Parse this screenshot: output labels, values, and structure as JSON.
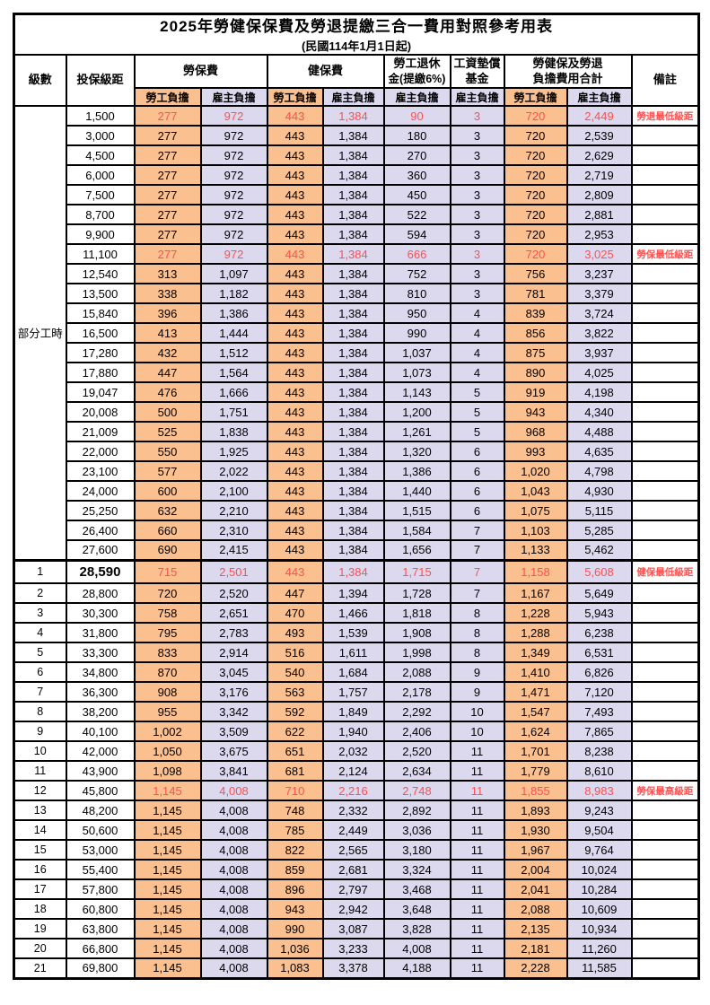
{
  "title": "2025年勞健保保費及勞退提繳三合一費用對照參考用表",
  "subtitle": "(民國114年1月1日起)",
  "colors": {
    "employee_burden_bg": "#FAC08F",
    "employer_burden_bg": "#DCD8EE",
    "highlight_text": "#FF4F4F",
    "border": "#000000"
  },
  "header": {
    "level": "級數",
    "bracket": "投保級距",
    "labor_group": "勞保費",
    "health_group": "健保費",
    "pension_line1": "勞工退休",
    "pension_line2": "金(提繳6%)",
    "wage_fund_line1": "工資墊償",
    "wage_fund_line2": "基金",
    "total_line1": "勞健保及勞退",
    "total_line2": "負擔費用合計",
    "remark": "備註",
    "employee": "勞工負擔",
    "employer": "雇主負擔"
  },
  "table": {
    "part_time_label": "部分工時",
    "part_time_row_count": 23,
    "rows": [
      {
        "level": null,
        "bracket": "1,500",
        "values": [
          "277",
          "972",
          "443",
          "1,384",
          "90",
          "3",
          "720",
          "2,449"
        ],
        "remark": "勞退最低級距",
        "red": true
      },
      {
        "level": null,
        "bracket": "3,000",
        "values": [
          "277",
          "972",
          "443",
          "1,384",
          "180",
          "3",
          "720",
          "2,539"
        ],
        "remark": ""
      },
      {
        "level": null,
        "bracket": "4,500",
        "values": [
          "277",
          "972",
          "443",
          "1,384",
          "270",
          "3",
          "720",
          "2,629"
        ],
        "remark": ""
      },
      {
        "level": null,
        "bracket": "6,000",
        "values": [
          "277",
          "972",
          "443",
          "1,384",
          "360",
          "3",
          "720",
          "2,719"
        ],
        "remark": ""
      },
      {
        "level": null,
        "bracket": "7,500",
        "values": [
          "277",
          "972",
          "443",
          "1,384",
          "450",
          "3",
          "720",
          "2,809"
        ],
        "remark": ""
      },
      {
        "level": null,
        "bracket": "8,700",
        "values": [
          "277",
          "972",
          "443",
          "1,384",
          "522",
          "3",
          "720",
          "2,881"
        ],
        "remark": ""
      },
      {
        "level": null,
        "bracket": "9,900",
        "values": [
          "277",
          "972",
          "443",
          "1,384",
          "594",
          "3",
          "720",
          "2,953"
        ],
        "remark": ""
      },
      {
        "level": null,
        "bracket": "11,100",
        "values": [
          "277",
          "972",
          "443",
          "1,384",
          "666",
          "3",
          "720",
          "3,025"
        ],
        "remark": "勞保最低級距",
        "red": true
      },
      {
        "level": null,
        "bracket": "12,540",
        "values": [
          "313",
          "1,097",
          "443",
          "1,384",
          "752",
          "3",
          "756",
          "3,237"
        ],
        "remark": ""
      },
      {
        "level": null,
        "bracket": "13,500",
        "values": [
          "338",
          "1,182",
          "443",
          "1,384",
          "810",
          "3",
          "781",
          "3,379"
        ],
        "remark": ""
      },
      {
        "level": null,
        "bracket": "15,840",
        "values": [
          "396",
          "1,386",
          "443",
          "1,384",
          "950",
          "4",
          "839",
          "3,724"
        ],
        "remark": ""
      },
      {
        "level": null,
        "bracket": "16,500",
        "values": [
          "413",
          "1,444",
          "443",
          "1,384",
          "990",
          "4",
          "856",
          "3,822"
        ],
        "remark": ""
      },
      {
        "level": null,
        "bracket": "17,280",
        "values": [
          "432",
          "1,512",
          "443",
          "1,384",
          "1,037",
          "4",
          "875",
          "3,937"
        ],
        "remark": ""
      },
      {
        "level": null,
        "bracket": "17,880",
        "values": [
          "447",
          "1,564",
          "443",
          "1,384",
          "1,073",
          "4",
          "890",
          "4,025"
        ],
        "remark": ""
      },
      {
        "level": null,
        "bracket": "19,047",
        "values": [
          "476",
          "1,666",
          "443",
          "1,384",
          "1,143",
          "5",
          "919",
          "4,198"
        ],
        "remark": ""
      },
      {
        "level": null,
        "bracket": "20,008",
        "values": [
          "500",
          "1,751",
          "443",
          "1,384",
          "1,200",
          "5",
          "943",
          "4,340"
        ],
        "remark": ""
      },
      {
        "level": null,
        "bracket": "21,009",
        "values": [
          "525",
          "1,838",
          "443",
          "1,384",
          "1,261",
          "5",
          "968",
          "4,488"
        ],
        "remark": ""
      },
      {
        "level": null,
        "bracket": "22,000",
        "values": [
          "550",
          "1,925",
          "443",
          "1,384",
          "1,320",
          "6",
          "993",
          "4,635"
        ],
        "remark": ""
      },
      {
        "level": null,
        "bracket": "23,100",
        "values": [
          "577",
          "2,022",
          "443",
          "1,384",
          "1,386",
          "6",
          "1,020",
          "4,798"
        ],
        "remark": ""
      },
      {
        "level": null,
        "bracket": "24,000",
        "values": [
          "600",
          "2,100",
          "443",
          "1,384",
          "1,440",
          "6",
          "1,043",
          "4,930"
        ],
        "remark": ""
      },
      {
        "level": null,
        "bracket": "25,250",
        "values": [
          "632",
          "2,210",
          "443",
          "1,384",
          "1,515",
          "6",
          "1,075",
          "5,115"
        ],
        "remark": ""
      },
      {
        "level": null,
        "bracket": "26,400",
        "values": [
          "660",
          "2,310",
          "443",
          "1,384",
          "1,584",
          "7",
          "1,103",
          "5,285"
        ],
        "remark": ""
      },
      {
        "level": null,
        "bracket": "27,600",
        "values": [
          "690",
          "2,415",
          "443",
          "1,384",
          "1,656",
          "7",
          "1,133",
          "5,462"
        ],
        "remark": ""
      },
      {
        "level": "1",
        "bracket": "28,590",
        "values": [
          "715",
          "2,501",
          "443",
          "1,384",
          "1,715",
          "7",
          "1,158",
          "5,608"
        ],
        "remark": "健保最低級距",
        "red": true,
        "em": true
      },
      {
        "level": "2",
        "bracket": "28,800",
        "values": [
          "720",
          "2,520",
          "447",
          "1,394",
          "1,728",
          "7",
          "1,167",
          "5,649"
        ],
        "remark": ""
      },
      {
        "level": "3",
        "bracket": "30,300",
        "values": [
          "758",
          "2,651",
          "470",
          "1,466",
          "1,818",
          "8",
          "1,228",
          "5,943"
        ],
        "remark": ""
      },
      {
        "level": "4",
        "bracket": "31,800",
        "values": [
          "795",
          "2,783",
          "493",
          "1,539",
          "1,908",
          "8",
          "1,288",
          "6,238"
        ],
        "remark": ""
      },
      {
        "level": "5",
        "bracket": "33,300",
        "values": [
          "833",
          "2,914",
          "516",
          "1,611",
          "1,998",
          "8",
          "1,349",
          "6,531"
        ],
        "remark": ""
      },
      {
        "level": "6",
        "bracket": "34,800",
        "values": [
          "870",
          "3,045",
          "540",
          "1,684",
          "2,088",
          "9",
          "1,410",
          "6,826"
        ],
        "remark": ""
      },
      {
        "level": "7",
        "bracket": "36,300",
        "values": [
          "908",
          "3,176",
          "563",
          "1,757",
          "2,178",
          "9",
          "1,471",
          "7,120"
        ],
        "remark": ""
      },
      {
        "level": "8",
        "bracket": "38,200",
        "values": [
          "955",
          "3,342",
          "592",
          "1,849",
          "2,292",
          "10",
          "1,547",
          "7,493"
        ],
        "remark": ""
      },
      {
        "level": "9",
        "bracket": "40,100",
        "values": [
          "1,002",
          "3,509",
          "622",
          "1,940",
          "2,406",
          "10",
          "1,624",
          "7,865"
        ],
        "remark": ""
      },
      {
        "level": "10",
        "bracket": "42,000",
        "values": [
          "1,050",
          "3,675",
          "651",
          "2,032",
          "2,520",
          "11",
          "1,701",
          "8,238"
        ],
        "remark": ""
      },
      {
        "level": "11",
        "bracket": "43,900",
        "values": [
          "1,098",
          "3,841",
          "681",
          "2,124",
          "2,634",
          "11",
          "1,779",
          "8,610"
        ],
        "remark": ""
      },
      {
        "level": "12",
        "bracket": "45,800",
        "values": [
          "1,145",
          "4,008",
          "710",
          "2,216",
          "2,748",
          "11",
          "1,855",
          "8,983"
        ],
        "remark": "勞保最高級距",
        "red": true
      },
      {
        "level": "13",
        "bracket": "48,200",
        "values": [
          "1,145",
          "4,008",
          "748",
          "2,332",
          "2,892",
          "11",
          "1,893",
          "9,243"
        ],
        "remark": ""
      },
      {
        "level": "14",
        "bracket": "50,600",
        "values": [
          "1,145",
          "4,008",
          "785",
          "2,449",
          "3,036",
          "11",
          "1,930",
          "9,504"
        ],
        "remark": ""
      },
      {
        "level": "15",
        "bracket": "53,000",
        "values": [
          "1,145",
          "4,008",
          "822",
          "2,565",
          "3,180",
          "11",
          "1,967",
          "9,764"
        ],
        "remark": ""
      },
      {
        "level": "16",
        "bracket": "55,400",
        "values": [
          "1,145",
          "4,008",
          "859",
          "2,681",
          "3,324",
          "11",
          "2,004",
          "10,024"
        ],
        "remark": ""
      },
      {
        "level": "17",
        "bracket": "57,800",
        "values": [
          "1,145",
          "4,008",
          "896",
          "2,797",
          "3,468",
          "11",
          "2,041",
          "10,284"
        ],
        "remark": ""
      },
      {
        "level": "18",
        "bracket": "60,800",
        "values": [
          "1,145",
          "4,008",
          "943",
          "2,942",
          "3,648",
          "11",
          "2,088",
          "10,609"
        ],
        "remark": ""
      },
      {
        "level": "19",
        "bracket": "63,800",
        "values": [
          "1,145",
          "4,008",
          "990",
          "3,087",
          "3,828",
          "11",
          "2,135",
          "10,934"
        ],
        "remark": ""
      },
      {
        "level": "20",
        "bracket": "66,800",
        "values": [
          "1,145",
          "4,008",
          "1,036",
          "3,233",
          "4,008",
          "11",
          "2,181",
          "11,260"
        ],
        "remark": ""
      },
      {
        "level": "21",
        "bracket": "69,800",
        "values": [
          "1,145",
          "4,008",
          "1,083",
          "3,378",
          "4,188",
          "11",
          "2,228",
          "11,585"
        ],
        "remark": ""
      }
    ]
  }
}
